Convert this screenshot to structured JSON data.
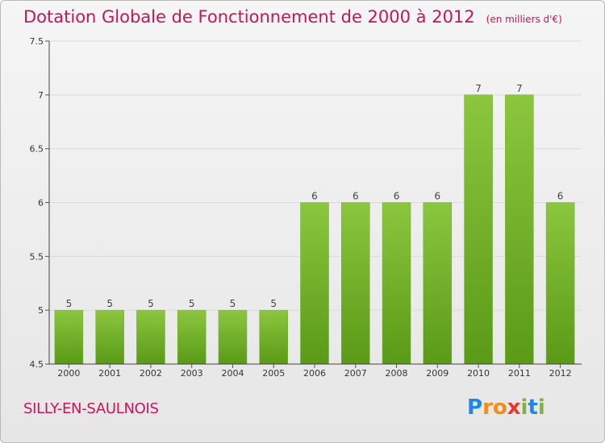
{
  "chart_data": {
    "type": "bar",
    "title": "Dotation Globale de Fonctionnement de 2000 à 2012",
    "subtitle": "(en milliers d'€)",
    "categories": [
      "2000",
      "2001",
      "2002",
      "2003",
      "2004",
      "2005",
      "2006",
      "2007",
      "2008",
      "2009",
      "2010",
      "2011",
      "2012"
    ],
    "values": [
      5,
      5,
      5,
      5,
      5,
      5,
      6,
      6,
      6,
      6,
      7,
      7,
      6
    ],
    "ylim": [
      4.5,
      7.5
    ],
    "yticks": [
      4.5,
      5,
      5.5,
      6,
      6.5,
      7,
      7.5
    ],
    "ytick_labels": [
      "4.5",
      "5",
      "5.5",
      "6",
      "6.5",
      "7",
      "7.5"
    ],
    "grid": true,
    "bar_color": "#8cc63f",
    "bar_color_dark": "#5a9a16"
  },
  "footer": {
    "city": "SILLY-EN-SAULNOIS",
    "logo_letters": [
      "P",
      "r",
      "o",
      "x",
      "i",
      "t",
      "i"
    ],
    "logo_colors": [
      "#1e88e5",
      "#f28c1c",
      "#f28c1c",
      "#e53935",
      "#7cb342",
      "#1e88e5",
      "#7cb342"
    ]
  }
}
